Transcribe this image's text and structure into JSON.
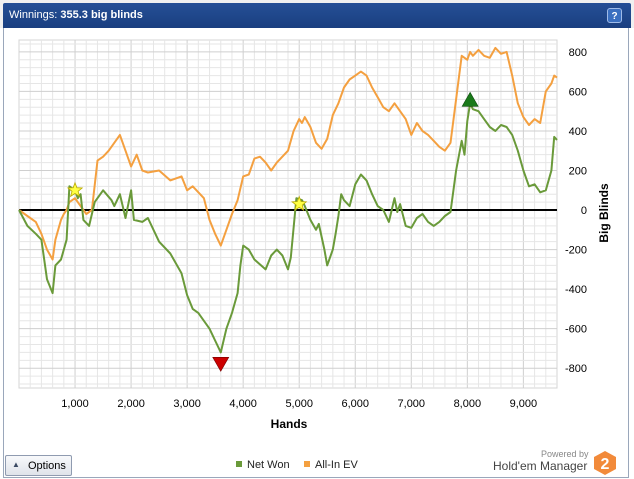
{
  "header": {
    "title_label": "Winnings:",
    "title_value": "355.3 big blinds",
    "help_label": "?"
  },
  "options_button": {
    "label": "Options",
    "arrow": "▲"
  },
  "legend": [
    {
      "label": "Net Won",
      "color": "#6a9a3a"
    },
    {
      "label": "All-In EV",
      "color": "#f4a040"
    }
  ],
  "branding": {
    "powered_by": "Powered by",
    "name": "Hold'em Manager",
    "logo_text": "2",
    "logo_color": "#f28a3a"
  },
  "chart_data": {
    "type": "line",
    "xlabel": "Hands",
    "ylabel": "Big Blinds",
    "xlim": [
      0,
      9600
    ],
    "ylim": [
      -900,
      860
    ],
    "xticks": [
      1000,
      2000,
      3000,
      4000,
      5000,
      6000,
      7000,
      8000,
      9000
    ],
    "xtick_labels": [
      "1,000",
      "2,000",
      "3,000",
      "4,000",
      "5,000",
      "6,000",
      "7,000",
      "8,000",
      "9,000"
    ],
    "yticks": [
      800,
      600,
      400,
      200,
      0,
      -200,
      -400,
      -600,
      -800
    ],
    "ytick_labels": [
      "800",
      "600",
      "400",
      "200",
      "0",
      "-200",
      "-400",
      "-600",
      "-800"
    ],
    "grid": true,
    "legend_position": "bottom",
    "series": [
      {
        "name": "Net Won",
        "color": "#6a9a3a",
        "points": [
          [
            0,
            0
          ],
          [
            150,
            -80
          ],
          [
            300,
            -120
          ],
          [
            400,
            -150
          ],
          [
            500,
            -350
          ],
          [
            600,
            -420
          ],
          [
            650,
            -280
          ],
          [
            750,
            -250
          ],
          [
            800,
            -200
          ],
          [
            850,
            -150
          ],
          [
            900,
            120
          ],
          [
            1000,
            100
          ],
          [
            1050,
            60
          ],
          [
            1100,
            80
          ],
          [
            1150,
            -50
          ],
          [
            1250,
            -80
          ],
          [
            1350,
            40
          ],
          [
            1500,
            100
          ],
          [
            1650,
            50
          ],
          [
            1700,
            20
          ],
          [
            1800,
            80
          ],
          [
            1900,
            -40
          ],
          [
            2000,
            100
          ],
          [
            2050,
            -50
          ],
          [
            2200,
            -60
          ],
          [
            2300,
            -40
          ],
          [
            2500,
            -160
          ],
          [
            2700,
            -220
          ],
          [
            2900,
            -320
          ],
          [
            3000,
            -430
          ],
          [
            3100,
            -500
          ],
          [
            3200,
            -520
          ],
          [
            3400,
            -600
          ],
          [
            3500,
            -660
          ],
          [
            3600,
            -720
          ],
          [
            3700,
            -600
          ],
          [
            3800,
            -520
          ],
          [
            3900,
            -420
          ],
          [
            3950,
            -280
          ],
          [
            4000,
            -180
          ],
          [
            4100,
            -200
          ],
          [
            4200,
            -250
          ],
          [
            4400,
            -300
          ],
          [
            4500,
            -230
          ],
          [
            4600,
            -200
          ],
          [
            4700,
            -230
          ],
          [
            4800,
            -300
          ],
          [
            4850,
            -240
          ],
          [
            4950,
            60
          ],
          [
            5050,
            50
          ],
          [
            5100,
            20
          ],
          [
            5200,
            -50
          ],
          [
            5300,
            -100
          ],
          [
            5350,
            -70
          ],
          [
            5450,
            -200
          ],
          [
            5500,
            -280
          ],
          [
            5600,
            -200
          ],
          [
            5650,
            -120
          ],
          [
            5700,
            -30
          ],
          [
            5750,
            80
          ],
          [
            5800,
            50
          ],
          [
            5900,
            20
          ],
          [
            6000,
            130
          ],
          [
            6100,
            180
          ],
          [
            6200,
            150
          ],
          [
            6300,
            80
          ],
          [
            6400,
            20
          ],
          [
            6500,
            0
          ],
          [
            6600,
            -60
          ],
          [
            6700,
            60
          ],
          [
            6750,
            -10
          ],
          [
            6800,
            30
          ],
          [
            6900,
            -80
          ],
          [
            7000,
            -90
          ],
          [
            7100,
            -40
          ],
          [
            7200,
            -20
          ],
          [
            7300,
            -60
          ],
          [
            7400,
            -80
          ],
          [
            7500,
            -60
          ],
          [
            7600,
            -30
          ],
          [
            7700,
            -10
          ],
          [
            7800,
            200
          ],
          [
            7900,
            350
          ],
          [
            7950,
            280
          ],
          [
            8000,
            450
          ],
          [
            8050,
            540
          ],
          [
            8100,
            510
          ],
          [
            8200,
            500
          ],
          [
            8300,
            460
          ],
          [
            8400,
            420
          ],
          [
            8500,
            400
          ],
          [
            8600,
            430
          ],
          [
            8700,
            420
          ],
          [
            8800,
            380
          ],
          [
            8900,
            300
          ],
          [
            9000,
            200
          ],
          [
            9100,
            120
          ],
          [
            9200,
            130
          ],
          [
            9300,
            90
          ],
          [
            9400,
            100
          ],
          [
            9500,
            200
          ],
          [
            9550,
            370
          ],
          [
            9600,
            355
          ]
        ]
      },
      {
        "name": "All-In EV",
        "color": "#f4a040",
        "points": [
          [
            0,
            0
          ],
          [
            150,
            -30
          ],
          [
            300,
            -60
          ],
          [
            400,
            -120
          ],
          [
            500,
            -200
          ],
          [
            600,
            -250
          ],
          [
            650,
            -150
          ],
          [
            750,
            -50
          ],
          [
            800,
            -20
          ],
          [
            850,
            0
          ],
          [
            900,
            40
          ],
          [
            1000,
            60
          ],
          [
            1100,
            20
          ],
          [
            1200,
            -20
          ],
          [
            1300,
            0
          ],
          [
            1400,
            250
          ],
          [
            1500,
            270
          ],
          [
            1600,
            300
          ],
          [
            1700,
            340
          ],
          [
            1800,
            380
          ],
          [
            1900,
            300
          ],
          [
            2000,
            220
          ],
          [
            2100,
            280
          ],
          [
            2200,
            200
          ],
          [
            2300,
            190
          ],
          [
            2500,
            200
          ],
          [
            2700,
            150
          ],
          [
            2900,
            170
          ],
          [
            3000,
            100
          ],
          [
            3100,
            120
          ],
          [
            3300,
            60
          ],
          [
            3400,
            -50
          ],
          [
            3500,
            -120
          ],
          [
            3600,
            -180
          ],
          [
            3700,
            -100
          ],
          [
            3800,
            -20
          ],
          [
            3900,
            50
          ],
          [
            4000,
            170
          ],
          [
            4100,
            180
          ],
          [
            4200,
            260
          ],
          [
            4300,
            270
          ],
          [
            4400,
            240
          ],
          [
            4500,
            200
          ],
          [
            4600,
            240
          ],
          [
            4800,
            300
          ],
          [
            4900,
            400
          ],
          [
            5000,
            460
          ],
          [
            5050,
            440
          ],
          [
            5100,
            470
          ],
          [
            5200,
            420
          ],
          [
            5300,
            340
          ],
          [
            5400,
            310
          ],
          [
            5500,
            360
          ],
          [
            5600,
            480
          ],
          [
            5700,
            540
          ],
          [
            5800,
            620
          ],
          [
            5900,
            660
          ],
          [
            6000,
            680
          ],
          [
            6100,
            700
          ],
          [
            6200,
            680
          ],
          [
            6300,
            620
          ],
          [
            6400,
            570
          ],
          [
            6500,
            520
          ],
          [
            6600,
            500
          ],
          [
            6700,
            540
          ],
          [
            6800,
            500
          ],
          [
            6900,
            460
          ],
          [
            7000,
            380
          ],
          [
            7100,
            440
          ],
          [
            7200,
            400
          ],
          [
            7300,
            380
          ],
          [
            7400,
            350
          ],
          [
            7500,
            320
          ],
          [
            7600,
            300
          ],
          [
            7700,
            340
          ],
          [
            7800,
            560
          ],
          [
            7900,
            780
          ],
          [
            8000,
            760
          ],
          [
            8050,
            800
          ],
          [
            8100,
            780
          ],
          [
            8200,
            810
          ],
          [
            8300,
            780
          ],
          [
            8400,
            770
          ],
          [
            8500,
            820
          ],
          [
            8600,
            790
          ],
          [
            8700,
            800
          ],
          [
            8800,
            680
          ],
          [
            8900,
            540
          ],
          [
            9000,
            470
          ],
          [
            9100,
            430
          ],
          [
            9200,
            460
          ],
          [
            9300,
            440
          ],
          [
            9400,
            600
          ],
          [
            9500,
            640
          ],
          [
            9550,
            680
          ],
          [
            9600,
            670
          ]
        ]
      }
    ],
    "annotations": [
      {
        "type": "star",
        "x": 1000,
        "y": 100,
        "color": "#ffff44"
      },
      {
        "type": "star",
        "x": 5000,
        "y": 30,
        "color": "#ffff44"
      },
      {
        "type": "triangle-down",
        "x": 3600,
        "y": -780,
        "color": "#cc0000"
      },
      {
        "type": "triangle-up",
        "x": 8050,
        "y": 560,
        "color": "#1a7a1a"
      }
    ]
  }
}
